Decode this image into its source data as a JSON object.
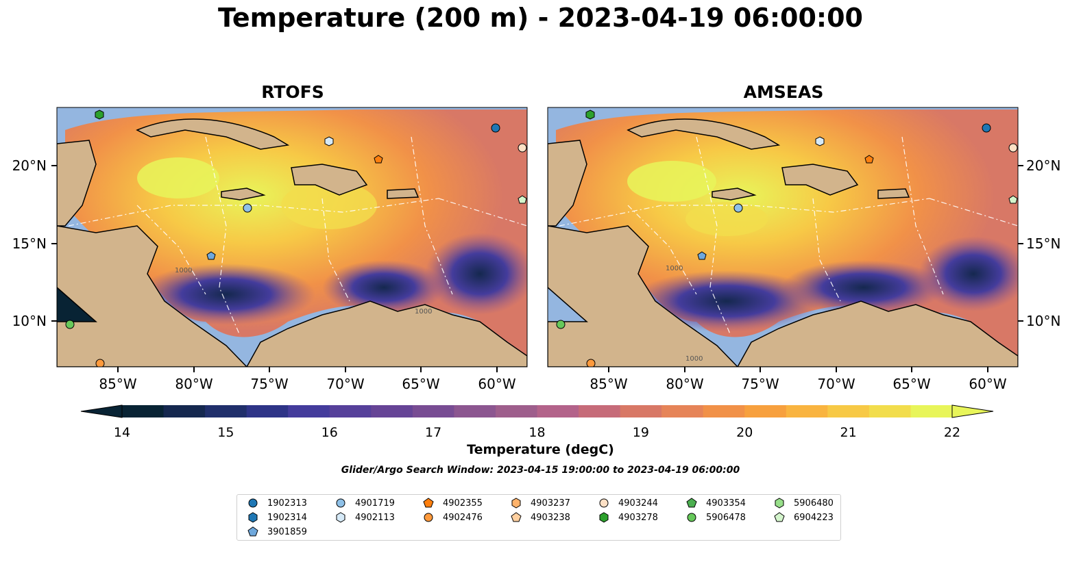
{
  "title": "Temperature (200 m) - 2023-04-19 06:00:00",
  "panels": [
    {
      "title": "RTOFS"
    },
    {
      "title": "AMSEAS"
    }
  ],
  "axes": {
    "lon_ticks": [
      "85°W",
      "80°W",
      "75°W",
      "70°W",
      "65°W",
      "60°W"
    ],
    "lat_ticks": [
      "20°N",
      "15°N",
      "10°N"
    ]
  },
  "contour_label": "1000",
  "colorbar": {
    "label": "Temperature (degC)",
    "ticks": [
      "14",
      "15",
      "16",
      "17",
      "18",
      "19",
      "20",
      "21",
      "22"
    ],
    "colors": [
      "#082334",
      "#15284f",
      "#202f6b",
      "#2e3487",
      "#443c9c",
      "#56409a",
      "#664496",
      "#784c93",
      "#8c5690",
      "#9e5e8c",
      "#b3638a",
      "#c66b79",
      "#d87866",
      "#e68458",
      "#f19148",
      "#f7a03e",
      "#f9b440",
      "#f7c946",
      "#f2dd4c",
      "#e8f55a"
    ]
  },
  "search_window": "Glider/Argo Search Window: 2023-04-15 19:00:00 to 2023-04-19 06:00:00",
  "legend": [
    {
      "label": "1902313",
      "marker": "circle",
      "color": "#1f77b4"
    },
    {
      "label": "1902314",
      "marker": "hexagon",
      "color": "#1f77b4"
    },
    {
      "label": "3901859",
      "marker": "pentagon",
      "color": "#6fa8dc"
    },
    {
      "label": "4901719",
      "marker": "circle",
      "color": "#8fc1e8"
    },
    {
      "label": "4902113",
      "marker": "hexagon",
      "color": "#d6eaf8"
    },
    {
      "label": "4902355",
      "marker": "pentagon",
      "color": "#ff7f0e"
    },
    {
      "label": "4902476",
      "marker": "circle",
      "color": "#ff9a3c"
    },
    {
      "label": "4903237",
      "marker": "hexagon",
      "color": "#ffb36b"
    },
    {
      "label": "4903238",
      "marker": "pentagon",
      "color": "#ffd0a0"
    },
    {
      "label": "4903244",
      "marker": "circle",
      "color": "#fde0c5"
    },
    {
      "label": "4903278",
      "marker": "hexagon",
      "color": "#2ca02c"
    },
    {
      "label": "4903354",
      "marker": "pentagon",
      "color": "#4caf50"
    },
    {
      "label": "5906478",
      "marker": "circle",
      "color": "#66c85a"
    },
    {
      "label": "5906480",
      "marker": "hexagon",
      "color": "#98df8a"
    },
    {
      "label": "6904223",
      "marker": "pentagon",
      "color": "#d4f5cc"
    }
  ]
}
